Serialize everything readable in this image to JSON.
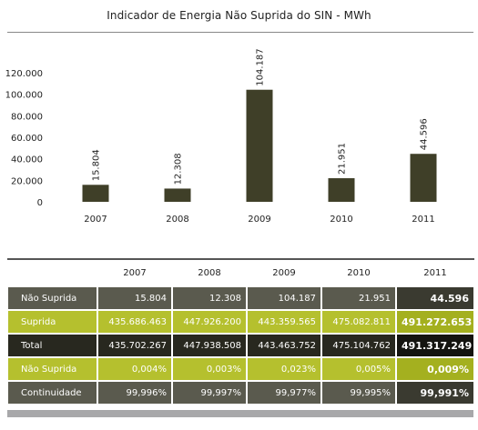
{
  "title": "Indicador de Energia Não Suprida do SIN - MWh",
  "chart_data": {
    "type": "bar",
    "title": "Indicador de Energia Não Suprida do SIN - MWh",
    "categories": [
      "2007",
      "2008",
      "2009",
      "2010",
      "2011"
    ],
    "values": [
      15804,
      12308,
      104187,
      21951,
      44596
    ],
    "value_labels": [
      "15.804",
      "12.308",
      "104.187",
      "21.951",
      "44.596"
    ],
    "y_ticks": [
      "0",
      "20.000",
      "40.000",
      "60.000",
      "80.000",
      "100.000",
      "120.000"
    ],
    "y_tick_values": [
      0,
      20000,
      40000,
      60000,
      80000,
      100000,
      120000
    ],
    "ylim": [
      0,
      120000
    ],
    "grid": false,
    "bar_color": "#3f3f28",
    "xlabel": "",
    "ylabel": ""
  },
  "table": {
    "headers": [
      "",
      "2007",
      "2008",
      "2009",
      "2010",
      "2011"
    ],
    "rows": [
      {
        "label": "Não Suprida",
        "values": [
          "15.804",
          "12.308",
          "104.187",
          "21.951",
          "44.596"
        ]
      },
      {
        "label": "Suprida",
        "values": [
          "435.686.463",
          "447.926.200",
          "443.359.565",
          "475.082.811",
          "491.272.653"
        ]
      },
      {
        "label": "Total",
        "values": [
          "435.702.267",
          "447.938.508",
          "443.463.752",
          "475.104.762",
          "491.317.249"
        ]
      },
      {
        "label": "Não Suprida",
        "values": [
          "0,004%",
          "0,003%",
          "0,023%",
          "0,005%",
          "0,009%"
        ]
      },
      {
        "label": "Continuidade",
        "values": [
          "99,996%",
          "99,997%",
          "99,977%",
          "99,995%",
          "99,991%"
        ]
      }
    ]
  },
  "colors": {
    "bar": "#3f3f28",
    "row_dark": "#5a5a4e",
    "row_green": "#b5c02e",
    "row_black": "#28281f",
    "bottom_bar": "#a8a8aa"
  }
}
